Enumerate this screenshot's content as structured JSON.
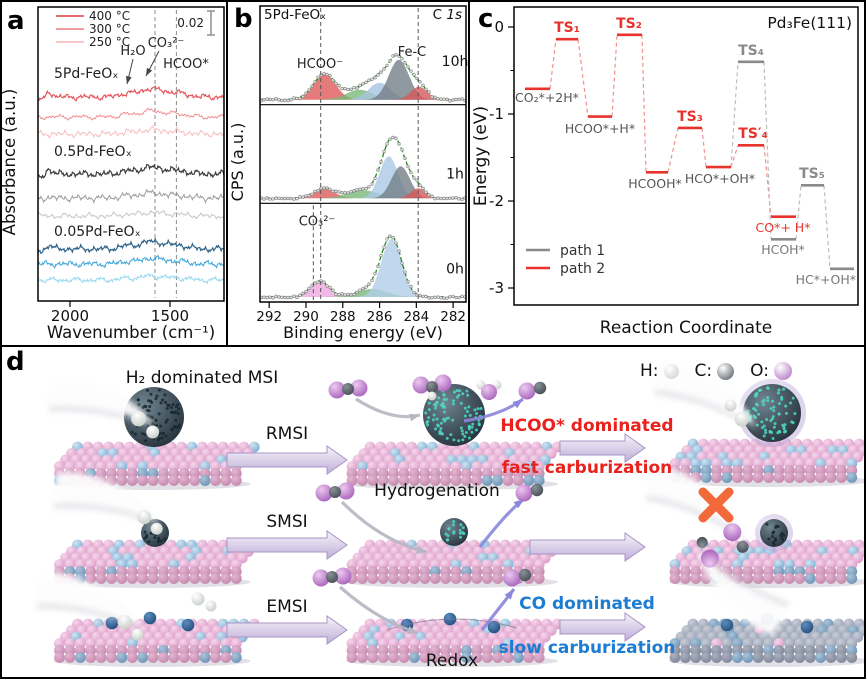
{
  "figure_type": "scientific-figure",
  "background": "#ffffff",
  "border_color": "#000000",
  "chart_data": [
    {
      "panel_letter": "a",
      "type": "line",
      "technique": "infrared spectra",
      "xlabel": "Wavenumber (cm⁻¹)",
      "ylabel": "Absorbance (a.u.)",
      "x_range": [
        2160,
        1230
      ],
      "xticks": [
        2000,
        1500
      ],
      "scale_bar": "0.02",
      "legend": [
        {
          "label": "400 °C",
          "color": "#e4575d"
        },
        {
          "label": "300 °C",
          "color": "#ef8e90"
        },
        {
          "label": "250 °C",
          "color": "#f7bfc0"
        }
      ],
      "dashed_lines": [
        1575,
        1468
      ],
      "annotations": [
        {
          "text": "H₂O",
          "x": 131,
          "y": 53
        },
        {
          "text": "CO₃²⁻",
          "x": 164,
          "y": 45
        },
        {
          "text": "HCOO*",
          "x": 184,
          "y": 66
        }
      ],
      "annotation_arrows": [
        {
          "x1": 131,
          "y1": 57,
          "x2": 125,
          "y2": 82
        },
        {
          "x1": 157,
          "y1": 49,
          "x2": 144,
          "y2": 74
        }
      ],
      "groups": [
        {
          "label": "5Pd-FeOₓ",
          "label_y": 76,
          "baselines": [
            95,
            115,
            132
          ],
          "colors": [
            "#e4575d",
            "#ef8e90",
            "#f7bfc0"
          ]
        },
        {
          "label": "0.5Pd-FeOₓ",
          "label_y": 154,
          "baselines": [
            172,
            196,
            214
          ],
          "colors": [
            "#3d3d3d",
            "#9d9d9d",
            "#c7c7c7"
          ]
        },
        {
          "label": "0.05Pd-FeOₓ",
          "label_y": 234,
          "baselines": [
            247,
            262,
            278
          ],
          "colors": [
            "#30648a",
            "#3fa8da",
            "#97d9ee"
          ]
        }
      ],
      "band_peaks": [
        {
          "c": 1710,
          "s": 40,
          "a": 3
        },
        {
          "c": 1620,
          "s": 35,
          "a": 4
        },
        {
          "c": 1560,
          "s": 45,
          "a": 4.5
        },
        {
          "c": 1460,
          "s": 50,
          "a": 3
        }
      ],
      "gas_features": [
        {
          "c": 2105,
          "s": 16,
          "a": 4.5
        },
        {
          "c": 2140,
          "s": 12,
          "a": -3.5
        }
      ]
    },
    {
      "panel_letter": "b",
      "type": "area",
      "technique": "XPS C 1s",
      "title": "5Pd-FeOₓ",
      "corner_label": "C 1s",
      "xlabel": "Binding energy (eV)",
      "ylabel": "CPS (a.u.)",
      "x_range": [
        292.5,
        281.3
      ],
      "xticks": [
        292,
        290,
        288,
        286,
        284,
        282
      ],
      "dashed_lines": [
        289.2,
        283.9
      ],
      "envelope_color": "#1f8c1f",
      "marker_color": "#8f8f8f",
      "peak_labels": [
        {
          "text": "HCOO⁻",
          "subpanel": 0,
          "x": 92,
          "y_off": 62
        },
        {
          "text": "Fe-C",
          "subpanel": 0,
          "x": 184,
          "y_off": 50
        },
        {
          "text": "CO₃²⁻",
          "subpanel": 2,
          "x": 89,
          "y_off": 22
        }
      ],
      "subpanels": [
        {
          "time_label": "10h",
          "label_y_off": 60,
          "peaks": [
            {
              "c": 289.0,
              "s": 0.6,
              "a": 26,
              "color": "#e05a5a"
            },
            {
              "c": 287.1,
              "s": 0.7,
              "a": 10,
              "color": "#79b979"
            },
            {
              "c": 286.0,
              "s": 0.6,
              "a": 17,
              "color": "#a6c3de"
            },
            {
              "c": 284.95,
              "s": 0.55,
              "a": 40,
              "color": "#747e88"
            },
            {
              "c": 283.85,
              "s": 0.45,
              "a": 13,
              "color": "#d85858"
            }
          ]
        },
        {
          "time_label": "1h",
          "label_y_off": 74,
          "peaks": [
            {
              "c": 289.0,
              "s": 0.55,
              "a": 10,
              "color": "#e05a5a"
            },
            {
              "c": 286.9,
              "s": 0.85,
              "a": 8,
              "color": "#79b979"
            },
            {
              "c": 285.5,
              "s": 0.5,
              "a": 42,
              "color": "#aac9e6"
            },
            {
              "c": 284.85,
              "s": 0.5,
              "a": 32,
              "color": "#747e88"
            },
            {
              "c": 283.9,
              "s": 0.4,
              "a": 10,
              "color": "#d85858"
            }
          ]
        },
        {
          "time_label": "0h",
          "label_y_off": 70,
          "extra_dash": 289.6,
          "peaks": [
            {
              "c": 289.25,
              "s": 0.5,
              "a": 16,
              "color": "#f0a8e0"
            },
            {
              "c": 286.4,
              "s": 0.8,
              "a": 8,
              "color": "#79b979"
            },
            {
              "c": 285.35,
              "s": 0.55,
              "a": 58,
              "color": "#b2cde9"
            }
          ]
        }
      ]
    },
    {
      "panel_letter": "c",
      "type": "line",
      "technique": "DFT energy diagram",
      "title": "Pd₃Fe(111)",
      "xlabel": "Reaction Coordinate",
      "ylabel": "Energy (eV)",
      "ylim": [
        -3.3,
        0.35
      ],
      "yticks": [
        0,
        -1,
        -2,
        -3
      ],
      "minor_yticks": [
        -0.5,
        -1.5,
        -2.5
      ],
      "path_colors": {
        "path1": "#8a8a8a",
        "path2": "#e8332c"
      },
      "dash_colors": {
        "path1": "#bdbdbd",
        "path2": "#f1928e"
      },
      "legend": [
        {
          "label": "path 1",
          "color": "#8a8a8a"
        },
        {
          "label": "path 2",
          "color": "#e8332c"
        }
      ],
      "levels": [
        {
          "id": "co2",
          "label": "CO₂*+2H*",
          "energy": -0.71,
          "x": [
            55,
            80
          ],
          "path": "path2",
          "label_color": "#555555",
          "label_at": [
            45,
            100
          ],
          "label_anchor": "start",
          "ts": false
        },
        {
          "id": "ts1",
          "label": "TS₁",
          "energy": -0.14,
          "x": [
            86,
            108
          ],
          "path": "path2",
          "label_color": "#e8332c",
          "label_at": [
            97,
            30
          ],
          "label_anchor": "middle",
          "ts": true
        },
        {
          "id": "hcoo",
          "label": "HCOO*+H*",
          "energy": -1.03,
          "x": [
            118,
            142
          ],
          "path": "path2",
          "label_color": "#555555",
          "label_at": [
            130,
            131
          ],
          "label_anchor": "middle",
          "ts": false
        },
        {
          "id": "ts2",
          "label": "TS₂",
          "energy": -0.09,
          "x": [
            147,
            172
          ],
          "path": "path2",
          "label_color": "#e8332c",
          "label_at": [
            159,
            26
          ],
          "label_anchor": "middle",
          "ts": true
        },
        {
          "id": "hcooh",
          "label": "HCOOH*",
          "energy": -1.67,
          "x": [
            176,
            198
          ],
          "path": "path2",
          "label_color": "#555555",
          "label_at": [
            185,
            186
          ],
          "label_anchor": "middle",
          "ts": false
        },
        {
          "id": "ts3",
          "label": "TS₃",
          "energy": -1.16,
          "x": [
            208,
            232
          ],
          "path": "path2",
          "label_color": "#e8332c",
          "label_at": [
            220,
            119
          ],
          "label_anchor": "middle",
          "ts": true
        },
        {
          "id": "hco",
          "label": "HCO*+OH*",
          "energy": -1.61,
          "x": [
            236,
            261
          ],
          "path": "path2",
          "label_color": "#555555",
          "label_at": [
            250,
            181
          ],
          "label_anchor": "middle",
          "ts": false
        },
        {
          "id": "ts4g",
          "label": "TS₄",
          "energy": -0.4,
          "x": [
            268,
            294
          ],
          "path": "path1",
          "label_color": "#8a8a8a",
          "label_at": [
            281,
            53
          ],
          "label_anchor": "middle",
          "ts": true
        },
        {
          "id": "ts4r",
          "label": "TS′₄",
          "energy": -1.36,
          "x": [
            268,
            294
          ],
          "path": "path2",
          "label_color": "#e8332c",
          "label_at": [
            283,
            136
          ],
          "label_anchor": "middle",
          "ts": true
        },
        {
          "id": "co",
          "label": "CO*+ H*",
          "energy": -2.18,
          "x": [
            301,
            326
          ],
          "path": "path2",
          "label_color": "#e8332c",
          "label_at": [
            313,
            230
          ],
          "label_anchor": "middle",
          "ts": false
        },
        {
          "id": "hcoh",
          "label": "HCOH*",
          "energy": -2.44,
          "x": [
            301,
            326
          ],
          "path": "path1",
          "label_color": "#777777",
          "label_at": [
            313,
            252
          ],
          "label_anchor": "middle",
          "ts": false
        },
        {
          "id": "ts5",
          "label": "TS₅",
          "energy": -1.82,
          "x": [
            331,
            354
          ],
          "path": "path1",
          "label_color": "#8a8a8a",
          "label_at": [
            342,
            176
          ],
          "label_anchor": "middle",
          "ts": true
        },
        {
          "id": "hc",
          "label": "HC*+OH*",
          "energy": -2.78,
          "x": [
            360,
            384
          ],
          "path": "path1",
          "label_color": "#777777",
          "label_at": [
            386,
            282
          ],
          "label_anchor": "end",
          "ts": false
        }
      ],
      "connections": [
        {
          "from": "co2",
          "to": "ts1",
          "path": "path2"
        },
        {
          "from": "ts1",
          "to": "hcoo",
          "path": "path2"
        },
        {
          "from": "hcoo",
          "to": "ts2",
          "path": "path2"
        },
        {
          "from": "ts2",
          "to": "hcooh",
          "path": "path2"
        },
        {
          "from": "hcooh",
          "to": "ts3",
          "path": "path2"
        },
        {
          "from": "ts3",
          "to": "hco",
          "path": "path2"
        },
        {
          "from": "hco",
          "to": "ts4r",
          "path": "path2"
        },
        {
          "from": "ts4r",
          "to": "co",
          "path": "path2"
        },
        {
          "from": "hco",
          "to": "ts4g",
          "path": "path1"
        },
        {
          "from": "ts4g",
          "to": "hcoh",
          "path": "path1"
        },
        {
          "from": "hcoh",
          "to": "ts5",
          "path": "path1"
        },
        {
          "from": "ts5",
          "to": "hc",
          "path": "path1"
        }
      ]
    }
  ],
  "panel_d": {
    "panel_letter": "d",
    "top_label": "H₂ dominated MSI",
    "row_arrow_labels": [
      "RMSI",
      "SMSI",
      "EMSI"
    ],
    "process_labels": {
      "hydrogenation": "Hydrogenation",
      "redox": "Redox"
    },
    "fast_text": {
      "line1": "HCOO* dominated",
      "line2": "fast carburization",
      "color": "#e8221c"
    },
    "slow_text": {
      "line1": "CO dominated",
      "line2": "slow carburization",
      "color": "#1d7dd2"
    },
    "atom_legend": [
      {
        "label": "H:",
        "color": "#c9cfc9"
      },
      {
        "label": "C:",
        "color": "#474f56"
      },
      {
        "label": "O:",
        "color": "#a964bd"
      }
    ]
  }
}
